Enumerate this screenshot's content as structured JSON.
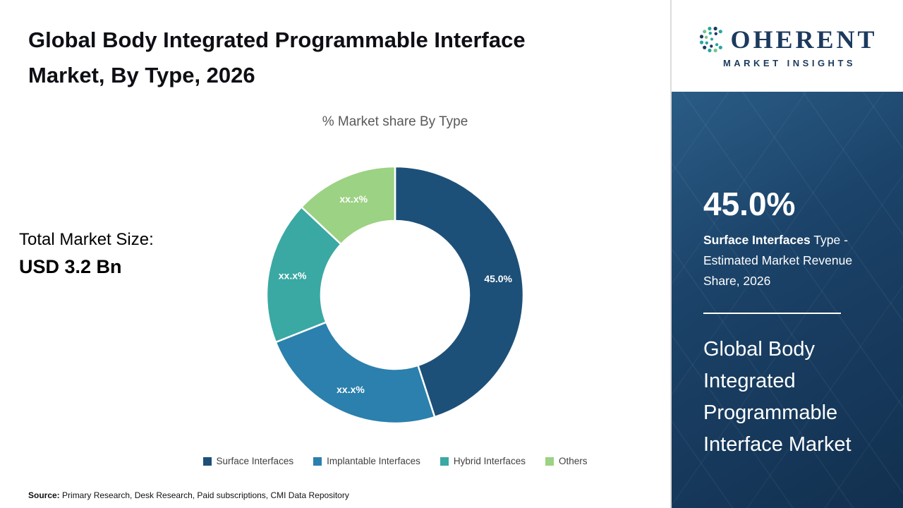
{
  "page": {
    "title": "Global Body Integrated Programmable Interface Market, By Type, 2026"
  },
  "chart_data": {
    "type": "pie",
    "donut": true,
    "title": "% Market share By Type",
    "categories": [
      "Surface Interfaces",
      "Implantable Interfaces",
      "Hybrid Interfaces",
      "Others"
    ],
    "values": [
      45.0,
      24.0,
      18.0,
      13.0
    ],
    "value_labels": [
      "45.0%",
      "xx.x%",
      "xx.x%",
      "xx.x%"
    ],
    "colors": [
      "#1d5078",
      "#2b80ad",
      "#3aa8a3",
      "#9cd283"
    ],
    "legend_position": "bottom"
  },
  "market_size": {
    "label": "Total Market Size:",
    "value": "USD 3.2 Bn"
  },
  "source": {
    "label": "Source:",
    "text": " Primary Research, Desk Research, Paid subscriptions, CMI Data Repository"
  },
  "sidebar": {
    "logo": {
      "wordmark_rest": "OHERENT",
      "tagline": "MARKET INSIGHTS"
    },
    "stat_value": "45.0%",
    "stat_bold": "Surface Interfaces",
    "stat_rest": " Type - Estimated Market Revenue Share, 2026",
    "market_title": "Global Body Integrated Programmable Interface Market"
  }
}
